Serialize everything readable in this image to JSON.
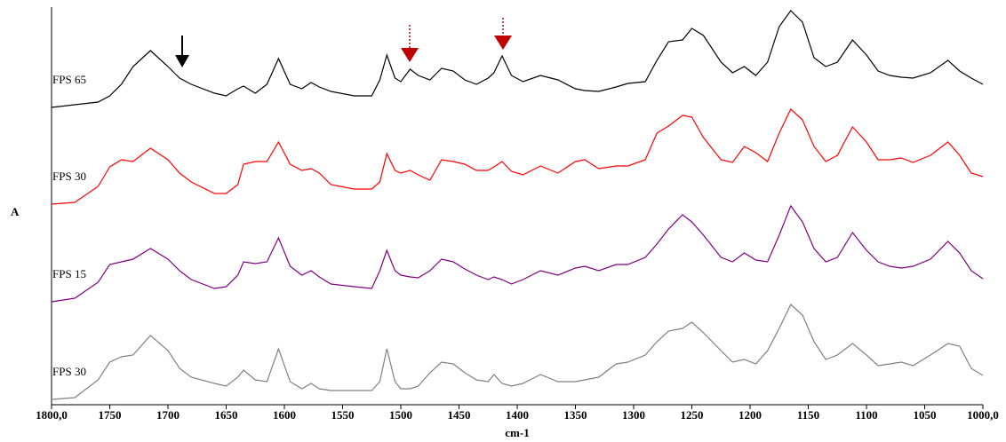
{
  "chart_data": {
    "type": "line",
    "x_label": "cm-1",
    "y_label": "A",
    "x": [
      1800,
      1780,
      1760,
      1750,
      1740,
      1730,
      1715,
      1700,
      1690,
      1680,
      1660,
      1650,
      1640,
      1635,
      1625,
      1615,
      1605,
      1595,
      1585,
      1577,
      1570,
      1560,
      1540,
      1525,
      1518,
      1512,
      1505,
      1500,
      1492,
      1485,
      1475,
      1465,
      1455,
      1445,
      1435,
      1425,
      1420,
      1413,
      1405,
      1395,
      1380,
      1365,
      1350,
      1342,
      1330,
      1315,
      1305,
      1290,
      1280,
      1270,
      1258,
      1250,
      1240,
      1225,
      1215,
      1205,
      1195,
      1185,
      1175,
      1165,
      1155,
      1145,
      1135,
      1125,
      1112,
      1100,
      1090,
      1080,
      1070,
      1060,
      1045,
      1030,
      1020,
      1010,
      1000
    ],
    "xlim": [
      1800,
      1000
    ],
    "xticks": [
      {
        "value": 1800,
        "label": "1800,0"
      },
      1750,
      1700,
      1650,
      1600,
      1550,
      1500,
      1450,
      1400,
      1350,
      1300,
      1250,
      1200,
      1150,
      1100,
      1050,
      {
        "value": 1000,
        "label": "1000,0"
      }
    ],
    "ylim": [
      0,
      4.45
    ],
    "series": [
      {
        "name": "FPS 65",
        "color": "#000000",
        "values": [
          3.34,
          3.37,
          3.4,
          3.47,
          3.6,
          3.8,
          3.98,
          3.8,
          3.67,
          3.6,
          3.5,
          3.47,
          3.55,
          3.58,
          3.5,
          3.6,
          3.89,
          3.6,
          3.55,
          3.62,
          3.57,
          3.52,
          3.47,
          3.47,
          3.65,
          3.93,
          3.67,
          3.63,
          3.77,
          3.7,
          3.65,
          3.78,
          3.75,
          3.65,
          3.6,
          3.67,
          3.73,
          3.92,
          3.7,
          3.63,
          3.7,
          3.65,
          3.55,
          3.53,
          3.52,
          3.57,
          3.61,
          3.63,
          3.87,
          4.08,
          4.1,
          4.23,
          4.15,
          3.85,
          3.73,
          3.8,
          3.7,
          3.85,
          4.25,
          4.43,
          4.3,
          3.9,
          3.8,
          3.85,
          4.1,
          3.93,
          3.75,
          3.7,
          3.68,
          3.67,
          3.73,
          3.87,
          3.75,
          3.67,
          3.6
        ]
      },
      {
        "name": "FPS 30",
        "color": "#ff0000",
        "values": [
          2.25,
          2.27,
          2.45,
          2.67,
          2.75,
          2.73,
          2.88,
          2.75,
          2.6,
          2.5,
          2.37,
          2.37,
          2.47,
          2.7,
          2.73,
          2.73,
          2.95,
          2.7,
          2.63,
          2.65,
          2.6,
          2.47,
          2.42,
          2.42,
          2.5,
          2.82,
          2.63,
          2.6,
          2.63,
          2.58,
          2.52,
          2.75,
          2.73,
          2.7,
          2.63,
          2.63,
          2.67,
          2.73,
          2.62,
          2.58,
          2.68,
          2.6,
          2.73,
          2.75,
          2.65,
          2.68,
          2.68,
          2.75,
          3.05,
          3.13,
          3.25,
          3.23,
          3.0,
          2.75,
          2.72,
          2.9,
          2.83,
          2.73,
          3.05,
          3.32,
          3.2,
          2.9,
          2.73,
          2.8,
          3.12,
          2.95,
          2.75,
          2.75,
          2.77,
          2.72,
          2.8,
          2.95,
          2.8,
          2.6,
          2.56
        ]
      },
      {
        "name": "FPS 15",
        "color": "#800080",
        "values": [
          1.15,
          1.19,
          1.37,
          1.57,
          1.6,
          1.63,
          1.75,
          1.63,
          1.5,
          1.4,
          1.3,
          1.32,
          1.45,
          1.6,
          1.58,
          1.6,
          1.87,
          1.55,
          1.45,
          1.5,
          1.43,
          1.35,
          1.32,
          1.3,
          1.5,
          1.73,
          1.5,
          1.45,
          1.43,
          1.42,
          1.5,
          1.63,
          1.6,
          1.52,
          1.45,
          1.4,
          1.43,
          1.4,
          1.35,
          1.4,
          1.5,
          1.45,
          1.53,
          1.55,
          1.5,
          1.57,
          1.57,
          1.65,
          1.8,
          1.97,
          2.13,
          2.05,
          1.9,
          1.65,
          1.6,
          1.7,
          1.62,
          1.6,
          1.9,
          2.23,
          2.05,
          1.75,
          1.6,
          1.65,
          1.93,
          1.73,
          1.6,
          1.55,
          1.53,
          1.55,
          1.63,
          1.83,
          1.7,
          1.5,
          1.41
        ]
      },
      {
        "name": "FPS 30",
        "color": "#808080",
        "values": [
          0.05,
          0.07,
          0.27,
          0.47,
          0.53,
          0.55,
          0.77,
          0.6,
          0.4,
          0.3,
          0.23,
          0.2,
          0.3,
          0.38,
          0.27,
          0.25,
          0.62,
          0.25,
          0.17,
          0.23,
          0.17,
          0.15,
          0.15,
          0.15,
          0.25,
          0.62,
          0.25,
          0.17,
          0.17,
          0.2,
          0.35,
          0.47,
          0.45,
          0.35,
          0.27,
          0.25,
          0.33,
          0.23,
          0.2,
          0.23,
          0.33,
          0.25,
          0.25,
          0.27,
          0.3,
          0.45,
          0.47,
          0.55,
          0.7,
          0.82,
          0.85,
          0.92,
          0.8,
          0.6,
          0.47,
          0.5,
          0.45,
          0.6,
          0.85,
          1.12,
          1.0,
          0.7,
          0.5,
          0.55,
          0.68,
          0.55,
          0.43,
          0.45,
          0.47,
          0.43,
          0.55,
          0.68,
          0.65,
          0.4,
          0.32
        ]
      }
    ]
  }
}
